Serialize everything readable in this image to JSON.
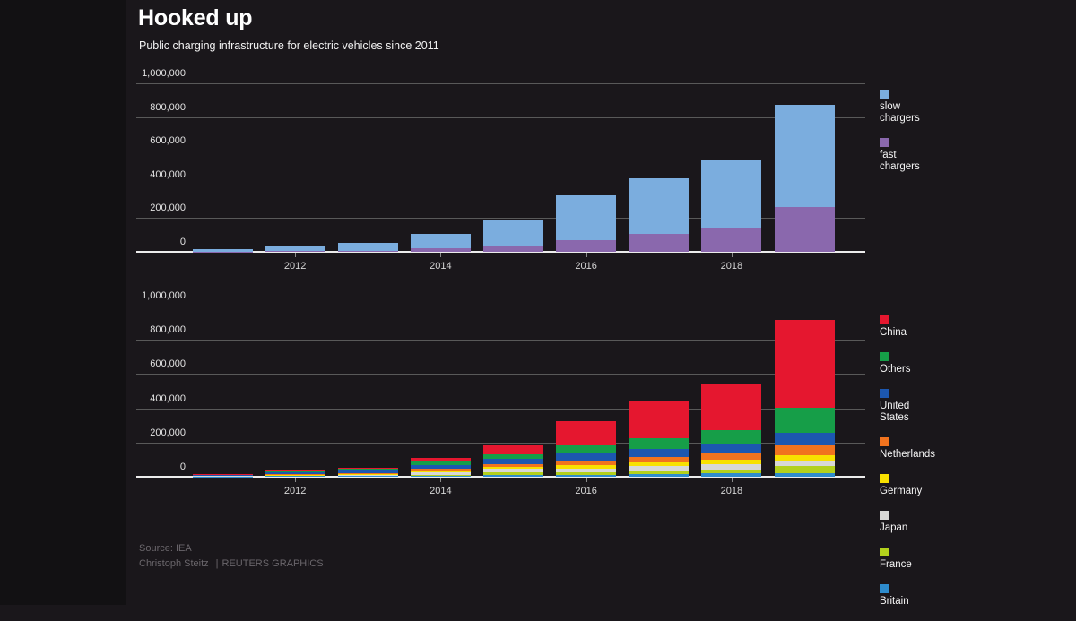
{
  "header": {
    "title": "Hooked up",
    "subtitle": "Public charging infrastructure for electric vehicles since 2011"
  },
  "footer": {
    "source": "Source: IEA",
    "credit_name": "Christoph Steitz",
    "credit_sep": "|",
    "credit_org": "REUTERS GRAPHICS"
  },
  "colors": {
    "background": "#1a171b",
    "gridline": "#595959",
    "baseline": "#ececec",
    "title_text": "#ffffff",
    "axis_text": "#e2e2e2",
    "footer_text": "#6a666b"
  },
  "chart_data": [
    {
      "type": "bar",
      "stacked": true,
      "title": "Chargers by speed",
      "categories": [
        "2011",
        "2012",
        "2013",
        "2014",
        "2015",
        "2016",
        "2017",
        "2018",
        "2019"
      ],
      "x_tick_labels": [
        "2012",
        "2014",
        "2016",
        "2018"
      ],
      "ylim": [
        0,
        1000000
      ],
      "y_ticks": [
        0,
        200000,
        400000,
        600000,
        800000,
        1000000
      ],
      "y_tick_labels": [
        "0",
        "200,000",
        "400,000",
        "600,000",
        "800,000",
        "1,000,000"
      ],
      "grid": true,
      "legend_position": "right",
      "series": [
        {
          "name": "slow chargers",
          "legend_label": "slow\nchargers",
          "color": "#7badde",
          "values": [
            12000,
            33000,
            46000,
            88000,
            150000,
            265000,
            330000,
            400000,
            606000
          ]
        },
        {
          "name": "fast chargers",
          "legend_label": "fast\nchargers",
          "color": "#8a68ad",
          "values": [
            2000,
            3000,
            6000,
            20000,
            38000,
            70000,
            108000,
            144000,
            268000
          ]
        }
      ]
    },
    {
      "type": "bar",
      "stacked": true,
      "title": "Chargers by country",
      "categories": [
        "2011",
        "2012",
        "2013",
        "2014",
        "2015",
        "2016",
        "2017",
        "2018",
        "2019"
      ],
      "x_tick_labels": [
        "2012",
        "2014",
        "2016",
        "2018"
      ],
      "ylim": [
        0,
        1000000
      ],
      "y_ticks": [
        0,
        200000,
        400000,
        600000,
        800000,
        1000000
      ],
      "y_tick_labels": [
        "0",
        "200,000",
        "400,000",
        "600,000",
        "800,000",
        "1,000,000"
      ],
      "grid": true,
      "legend_position": "right",
      "series": [
        {
          "name": "China",
          "legend_label": "China",
          "color": "#e5172f",
          "values": [
            1000,
            2000,
            4000,
            25000,
            50000,
            141000,
            215000,
            275000,
            515000
          ]
        },
        {
          "name": "Others",
          "legend_label": "Others",
          "color": "#169e48",
          "values": [
            3000,
            8000,
            13000,
            20000,
            28000,
            50000,
            65000,
            80000,
            145000
          ]
        },
        {
          "name": "United States",
          "legend_label": "United\nStates",
          "color": "#1c57b0",
          "values": [
            4000,
            12000,
            14000,
            22000,
            28000,
            42000,
            46000,
            55000,
            74000
          ]
        },
        {
          "name": "Netherlands",
          "legend_label": "Netherlands",
          "color": "#f1731e",
          "values": [
            2000,
            3000,
            6000,
            12000,
            18000,
            26000,
            33000,
            37000,
            58000
          ]
        },
        {
          "name": "Germany",
          "legend_label": "Germany",
          "color": "#f8e100",
          "values": [
            1000,
            3000,
            4000,
            8000,
            12000,
            17000,
            22000,
            26000,
            36000
          ]
        },
        {
          "name": "Japan",
          "legend_label": "Japan",
          "color": "#d8d8d6",
          "values": [
            1000,
            3000,
            5000,
            12000,
            20000,
            22000,
            28000,
            29000,
            27000
          ]
        },
        {
          "name": "France",
          "legend_label": "France",
          "color": "#b3d11c",
          "values": [
            1000,
            2000,
            4000,
            7000,
            15000,
            15000,
            20000,
            25000,
            39000
          ]
        },
        {
          "name": "Britain",
          "legend_label": "Britain",
          "color": "#2e8ccd",
          "values": [
            1000,
            3000,
            3000,
            6000,
            11000,
            12000,
            14000,
            19000,
            23000
          ]
        }
      ]
    }
  ]
}
